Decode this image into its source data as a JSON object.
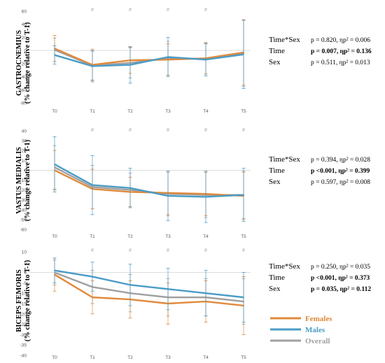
{
  "colors": {
    "Females": "#e08a3c",
    "Males": "#4a9cc6",
    "Overall": "#a0a0a0",
    "zero_line": "#d0d0d0",
    "axis_text": "#595959"
  },
  "legend": [
    {
      "name": "Females",
      "color": "#e08a3c"
    },
    {
      "name": "Males",
      "color": "#4a9cc6"
    },
    {
      "name": "Overall",
      "color": "#a0a0a0"
    }
  ],
  "chart_data": [
    {
      "type": "line",
      "muscle": "GASTROCNEMIUS",
      "ylabel": "(% change relative to T-1)",
      "categories": [
        "T0",
        "T1",
        "T2",
        "T3",
        "T4",
        "T5"
      ],
      "ylim": [
        -80,
        60
      ],
      "yticks": [
        "60",
        "40",
        "20",
        "0",
        "-20",
        "-40",
        "-60",
        "-80"
      ],
      "significance": [
        "",
        "#",
        "#",
        "#",
        "#",
        ""
      ],
      "series": [
        {
          "name": "Females",
          "values": [
            3,
            -22,
            -15,
            -14,
            -12,
            -3
          ],
          "err": [
            20,
            24,
            20,
            24,
            24,
            50
          ]
        },
        {
          "name": "Males",
          "values": [
            -7,
            -24,
            -22,
            -10,
            -14,
            -6
          ],
          "err": [
            14,
            24,
            28,
            30,
            25,
            52
          ]
        },
        {
          "name": "Overall",
          "values": [
            1,
            -23,
            -19,
            -12,
            -13,
            -4
          ],
          "err": [
            18,
            22,
            23,
            26,
            23,
            51
          ]
        }
      ],
      "stats": [
        {
          "label": "Time*Sex",
          "value": "p = 0.820, ηp² = 0.006",
          "bold": false
        },
        {
          "label": "Time",
          "value": "p = 0.007, ηp² = 0.136",
          "bold": true
        },
        {
          "label": "Sex",
          "value": "p = 0.511, ηp² = 0.013",
          "bold": false
        }
      ]
    },
    {
      "type": "line",
      "muscle": "VASTUS MEDIALIS",
      "ylabel": "(% change relative to T-1)",
      "categories": [
        "T0",
        "T1",
        "T2",
        "T3",
        "T4",
        "T5"
      ],
      "ylim": [
        -60,
        40
      ],
      "yticks": [
        "40",
        "30",
        "20",
        "10",
        "0",
        "-10",
        "-20",
        "-30",
        "-40",
        "-50",
        "-60"
      ],
      "significance": [
        "",
        "#",
        "#",
        "#",
        "#",
        "#"
      ],
      "series": [
        {
          "name": "Females",
          "values": [
            0,
            -19,
            -22,
            -23,
            -24,
            -26
          ],
          "err": [
            20,
            20,
            15,
            22,
            22,
            24
          ]
        },
        {
          "name": "Males",
          "values": [
            6,
            -15,
            -18,
            -26,
            -27,
            -25
          ],
          "err": [
            28,
            30,
            20,
            25,
            26,
            27
          ]
        },
        {
          "name": "Overall",
          "values": [
            3,
            -17,
            -20,
            -24,
            -25,
            -25
          ],
          "err": [
            22,
            22,
            17,
            22,
            23,
            24
          ]
        }
      ],
      "stats": [
        {
          "label": "Time*Sex",
          "value": "p = 0.394, ηp² = 0.028",
          "bold": false
        },
        {
          "label": "Time",
          "value": "p <0.001, ηp² = 0.399",
          "bold": true
        },
        {
          "label": "Sex",
          "value": "p = 0.597, ηp² = 0.008",
          "bold": false
        }
      ]
    },
    {
      "type": "line",
      "muscle": "BICEPS FEMORIS",
      "ylabel": "(% change relative to T-1)",
      "categories": [
        "T0",
        "T1",
        "T2",
        "T3",
        "T4",
        "T5"
      ],
      "ylim": [
        -40,
        10
      ],
      "yticks": [
        "10",
        "5",
        "0",
        "-5",
        "-10",
        "-15",
        "-20",
        "-25",
        "-30",
        "-35",
        "-40"
      ],
      "significance": [
        "",
        "#",
        "#",
        "#",
        "#",
        "#"
      ],
      "series": [
        {
          "name": "Females",
          "values": [
            -1,
            -12,
            -13,
            -15,
            -14,
            -16
          ],
          "err": [
            8,
            8,
            9,
            10,
            10,
            14
          ]
        },
        {
          "name": "Males",
          "values": [
            1,
            -2,
            -6,
            -8,
            -10,
            -12
          ],
          "err": [
            6,
            7,
            10,
            10,
            11,
            12
          ]
        },
        {
          "name": "Overall",
          "values": [
            0,
            -7,
            -10,
            -12,
            -12,
            -14
          ],
          "err": [
            6,
            8,
            9,
            9,
            9,
            11
          ]
        }
      ],
      "stats": [
        {
          "label": "Time*Sex",
          "value": "p = 0.250, ηp² = 0.035",
          "bold": false
        },
        {
          "label": "Time",
          "value": "p <0.001, ηp² = 0.373",
          "bold": true
        },
        {
          "label": "Sex",
          "value": "p = 0.035, ηp² = 0.112",
          "bold": true
        }
      ]
    }
  ]
}
